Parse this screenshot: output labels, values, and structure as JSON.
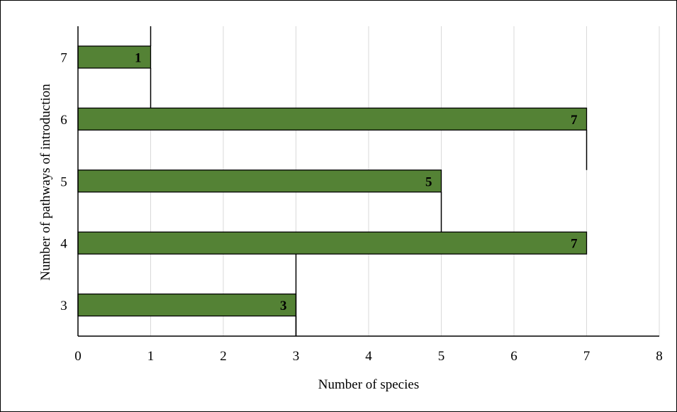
{
  "chart_data": {
    "type": "bar",
    "orientation": "horizontal",
    "categories": [
      "3",
      "4",
      "5",
      "6",
      "7"
    ],
    "values": [
      3,
      7,
      5,
      7,
      1
    ],
    "step_line_values": [
      3,
      5,
      7,
      1
    ],
    "data_labels": [
      "3",
      "7",
      "5",
      "7",
      "1"
    ],
    "title": "",
    "xlabel": "Number of species",
    "ylabel": "Number of pathways of introduction",
    "xlim": [
      0,
      8
    ],
    "x_ticks": [
      "0",
      "1",
      "2",
      "3",
      "4",
      "5",
      "6",
      "7",
      "8"
    ],
    "grid": "vertical",
    "legend": "none",
    "bar_color": "#548235",
    "gridline_color": "#d9d9d9"
  }
}
